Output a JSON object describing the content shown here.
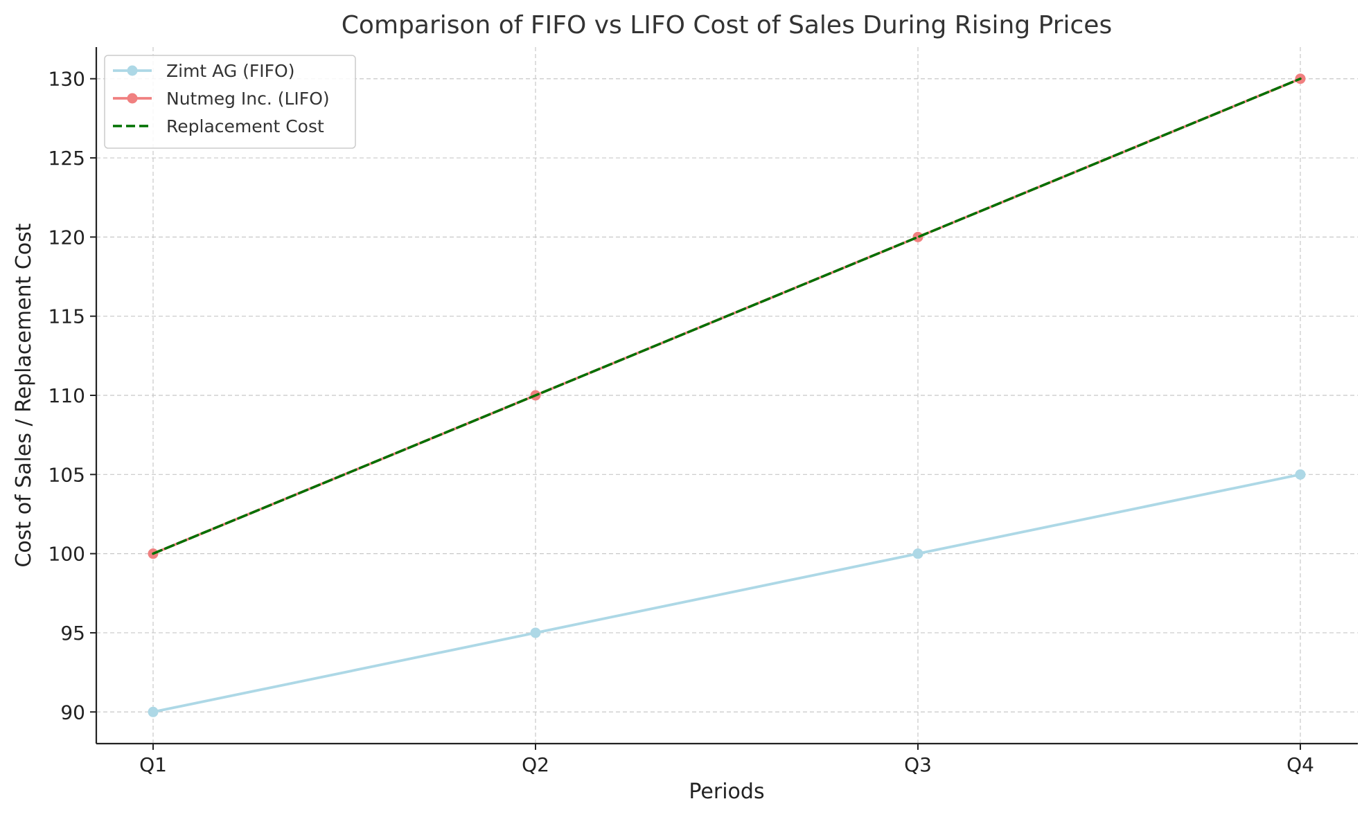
{
  "chart_data": {
    "type": "line",
    "title": "Comparison of FIFO vs LIFO Cost of Sales During Rising Prices",
    "xlabel": "Periods",
    "ylabel": "Cost of Sales / Replacement Cost",
    "categories": [
      "Q1",
      "Q2",
      "Q3",
      "Q4"
    ],
    "ylim": [
      88,
      132
    ],
    "yticks": [
      90,
      95,
      100,
      105,
      110,
      115,
      120,
      125,
      130
    ],
    "grid": true,
    "legend_position": "top-left",
    "series": [
      {
        "name": "Zimt AG (FIFO)",
        "values": [
          90,
          95,
          100,
          105
        ],
        "color": "#add8e6",
        "style": "solid",
        "marker": "circle"
      },
      {
        "name": "Nutmeg Inc. (LIFO)",
        "values": [
          100,
          110,
          120,
          130
        ],
        "color": "#f08080",
        "style": "solid",
        "marker": "circle"
      },
      {
        "name": "Replacement Cost",
        "values": [
          100,
          110,
          120,
          130
        ],
        "color": "#007000",
        "style": "dashed",
        "marker": "none"
      }
    ]
  }
}
